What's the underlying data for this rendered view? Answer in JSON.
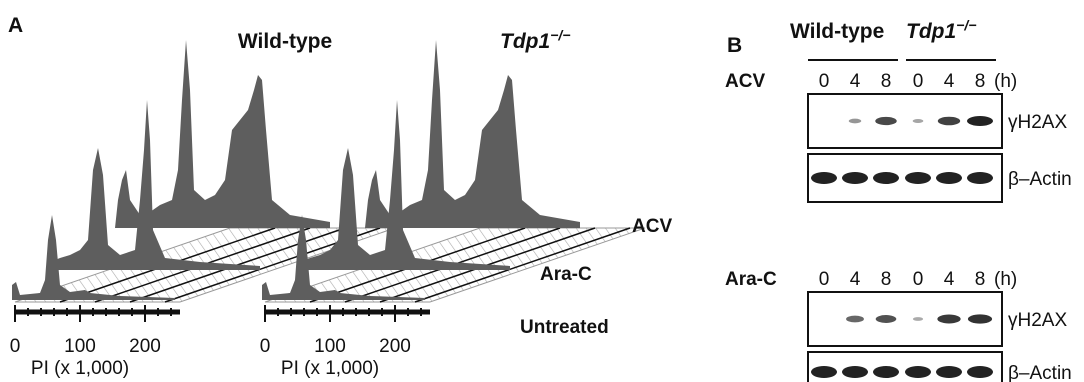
{
  "panel_a": {
    "label": "A",
    "groups": [
      {
        "title": "Wild-type",
        "gene": null,
        "genotype": null,
        "xticks": [
          "0",
          "100",
          "200"
        ],
        "xlabel": "PI (x 1,000)"
      },
      {
        "title": null,
        "gene": "Tdp1",
        "genotype": "−/−",
        "xticks": [
          "0",
          "100",
          "200"
        ],
        "xlabel": "PI (x 1,000)"
      }
    ],
    "rows": [
      "ACV",
      "Ara-C",
      "Untreated"
    ]
  },
  "panel_b": {
    "label": "B",
    "wild_type": "Wild-type",
    "gene": "Tdp1",
    "genotype": "−/−",
    "blocks": [
      {
        "treatment": "ACV",
        "lanes": [
          "0",
          "4",
          "8",
          "0",
          "4",
          "8"
        ],
        "unit": "(h)",
        "blots": [
          "γH2AX",
          "β–Actin"
        ]
      },
      {
        "treatment": "Ara-C",
        "lanes": [
          "0",
          "4",
          "8",
          "0",
          "4",
          "8"
        ],
        "unit": "(h)",
        "blots": [
          "γH2AX",
          "β–Actin"
        ]
      }
    ]
  }
}
